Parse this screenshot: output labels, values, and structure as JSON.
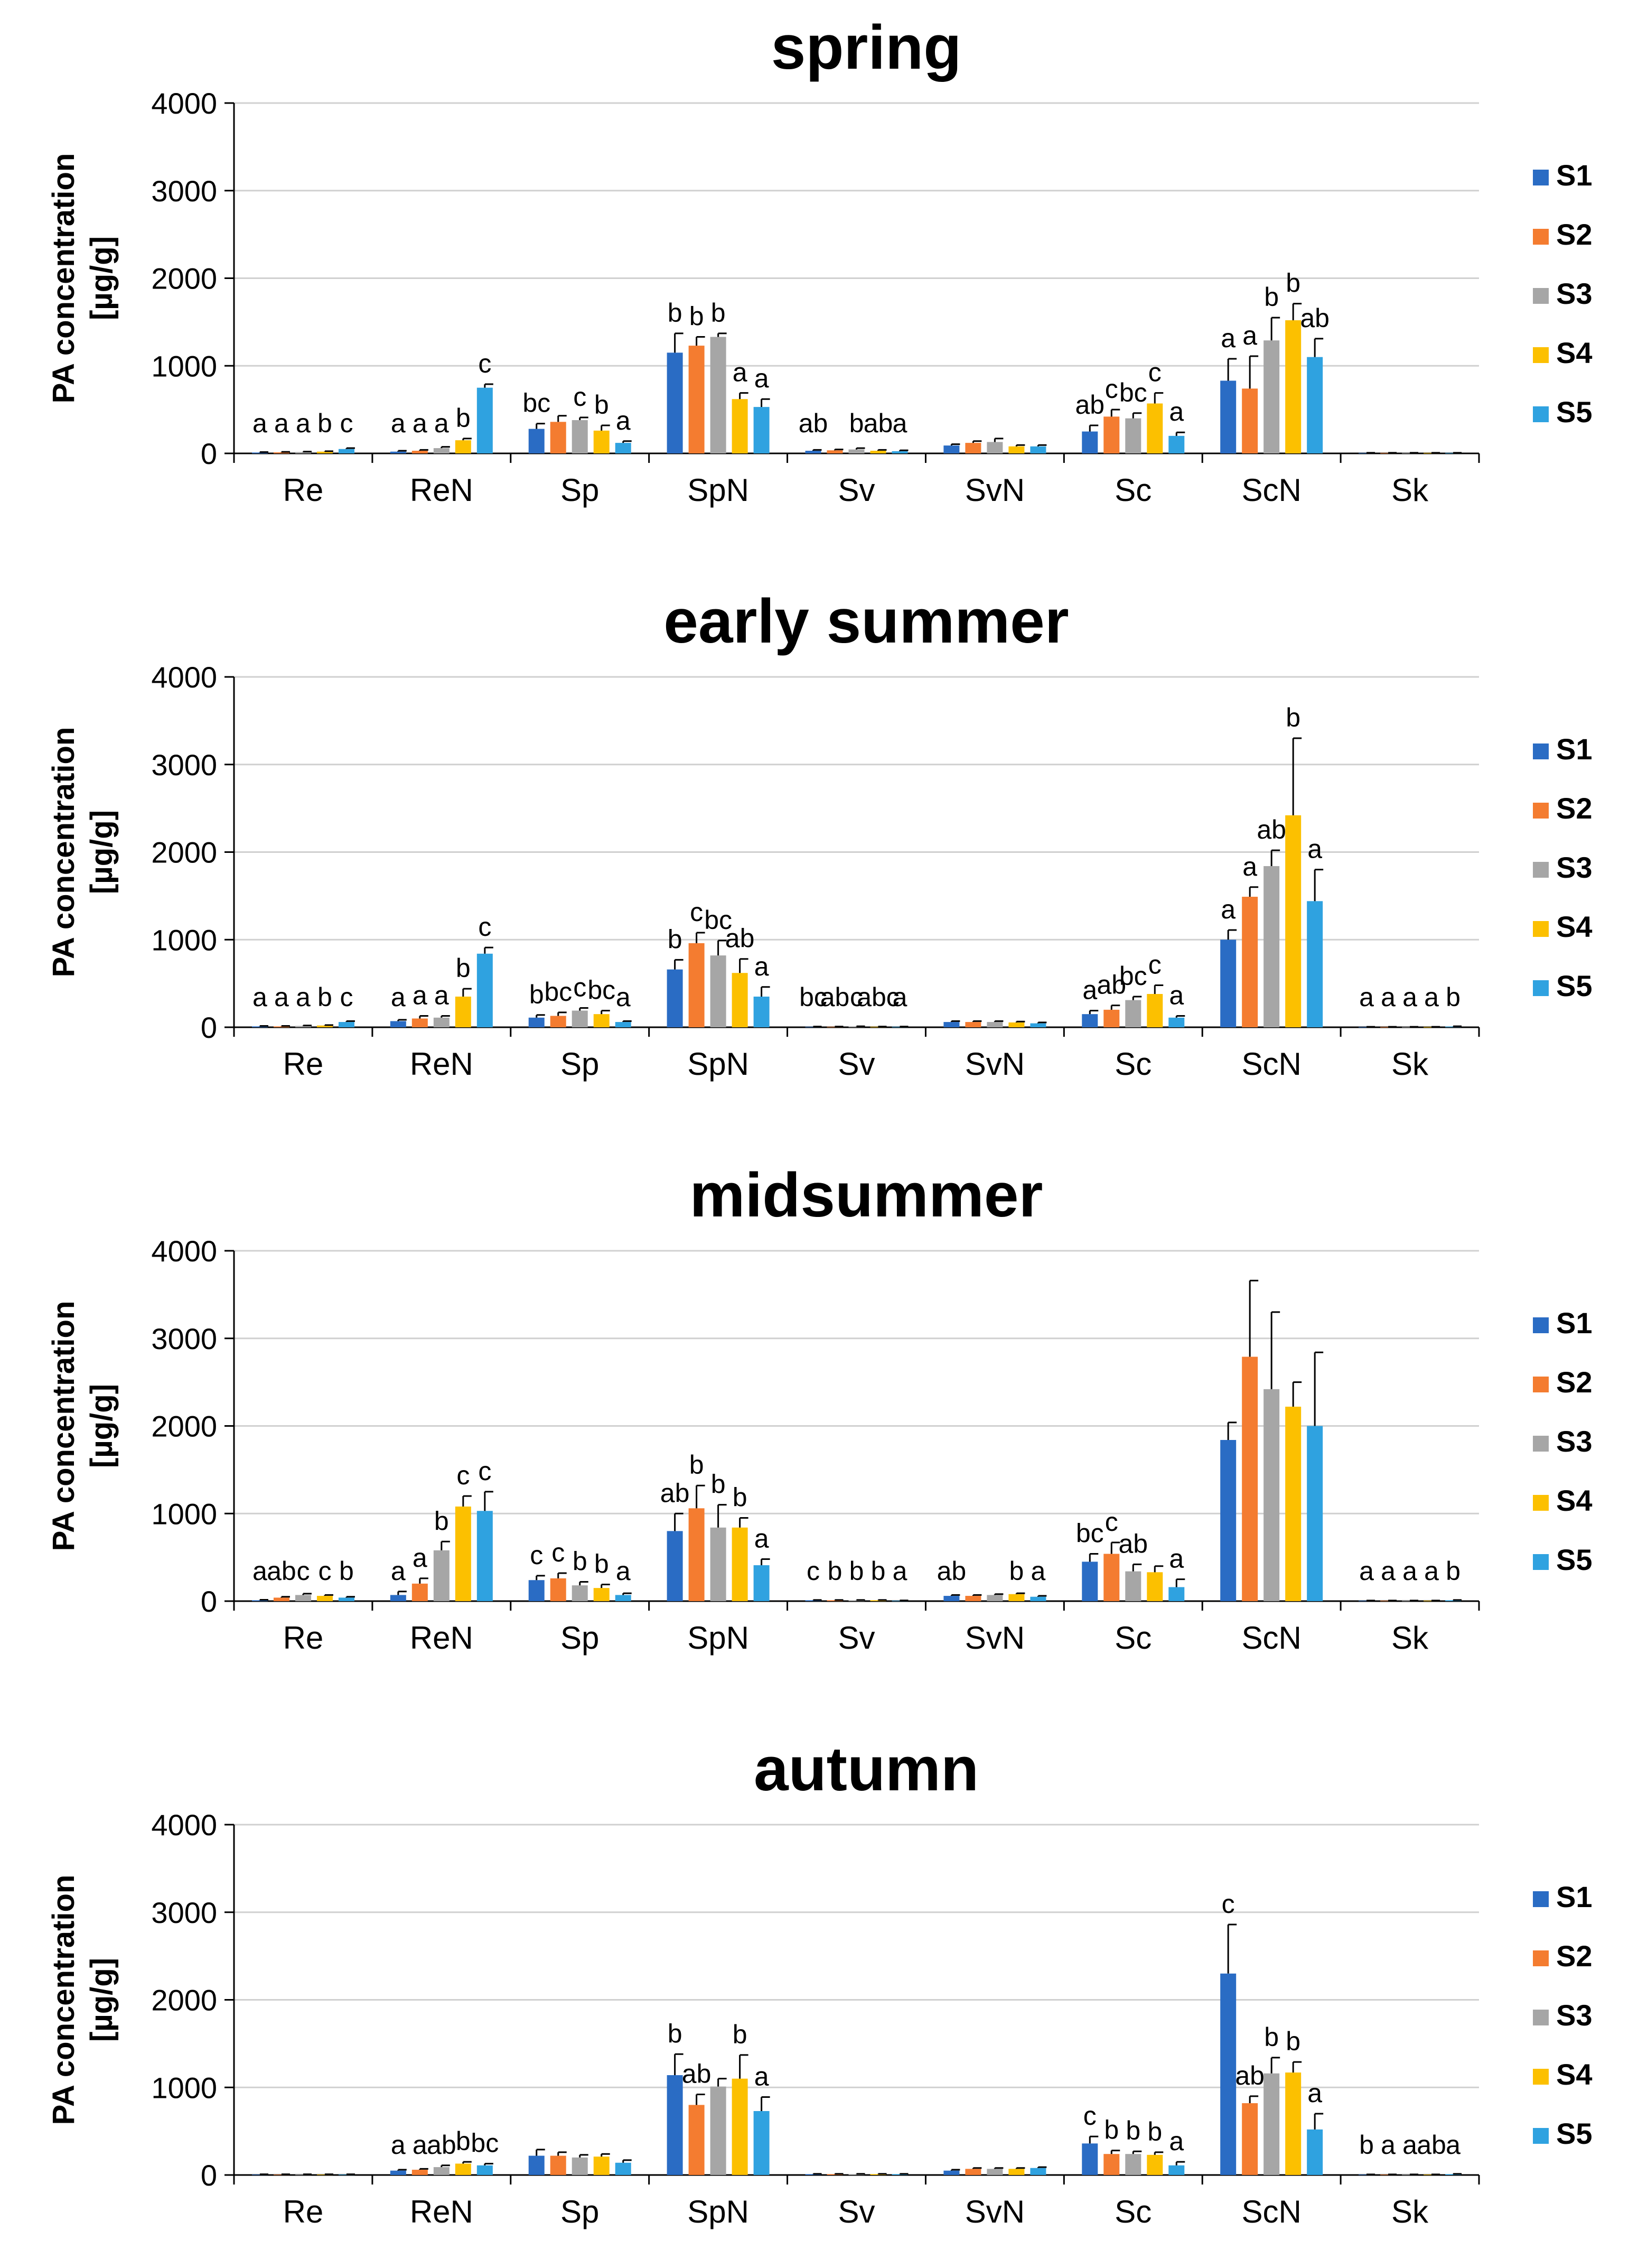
{
  "series_colors": {
    "S1": "#2a6cc4",
    "S2": "#f47c30",
    "S3": "#a6a6a6",
    "S4": "#fcc000",
    "S5": "#2fa2e0"
  },
  "chart_data": [
    {
      "type": "bar",
      "title": "spring",
      "ylabel": [
        "PA concentration",
        "[µg/g]"
      ],
      "ylim": [
        0,
        4000
      ],
      "yticks": [
        0,
        1000,
        2000,
        3000,
        4000
      ],
      "categories": [
        "Re",
        "ReN",
        "Sp",
        "SpN",
        "Sv",
        "SvN",
        "Sc",
        "ScN",
        "Sk"
      ],
      "legend": "right",
      "grid": true,
      "series": [
        {
          "name": "S1",
          "values": [
            10,
            20,
            280,
            1150,
            30,
            90,
            250,
            830,
            5
          ],
          "errors": [
            5,
            10,
            60,
            220,
            10,
            15,
            70,
            250,
            2
          ]
        },
        {
          "name": "S2",
          "values": [
            12,
            30,
            360,
            1230,
            35,
            120,
            420,
            740,
            5
          ],
          "errors": [
            5,
            10,
            70,
            100,
            10,
            20,
            80,
            370,
            2
          ]
        },
        {
          "name": "S3",
          "values": [
            15,
            60,
            380,
            1330,
            45,
            130,
            400,
            1290,
            5
          ],
          "errors": [
            5,
            15,
            30,
            40,
            15,
            40,
            60,
            260,
            2
          ]
        },
        {
          "name": "S4",
          "values": [
            20,
            150,
            260,
            620,
            30,
            80,
            570,
            1520,
            5
          ],
          "errors": [
            5,
            20,
            60,
            70,
            10,
            15,
            120,
            190,
            2
          ]
        },
        {
          "name": "S5",
          "values": [
            50,
            750,
            120,
            530,
            25,
            80,
            200,
            1100,
            5
          ],
          "errors": [
            10,
            40,
            20,
            90,
            10,
            15,
            40,
            210,
            2
          ]
        }
      ],
      "significance": [
        {
          "category": "Re",
          "labels": [
            "a",
            "a",
            "a",
            "b",
            "c"
          ]
        },
        {
          "category": "ReN",
          "labels": [
            "a",
            "a",
            "a",
            "b",
            "c"
          ]
        },
        {
          "category": "Sp",
          "labels": [
            "bc",
            "",
            "c",
            "b",
            "a"
          ]
        },
        {
          "category": "SpN",
          "labels": [
            "b",
            "b",
            "b",
            "a",
            "a"
          ]
        },
        {
          "category": "Sv",
          "labels": [
            "ab",
            "",
            "b",
            "ab",
            "a"
          ]
        },
        {
          "category": "Sc",
          "labels": [
            "ab",
            "c",
            "bc",
            "c",
            "a"
          ]
        },
        {
          "category": "ScN",
          "labels": [
            "a",
            "a",
            "b",
            "b",
            "ab"
          ]
        }
      ]
    },
    {
      "type": "bar",
      "title": "early summer",
      "ylabel": [
        "PA concentration",
        "[µg/g]"
      ],
      "ylim": [
        0,
        4000
      ],
      "yticks": [
        0,
        1000,
        2000,
        3000,
        4000
      ],
      "categories": [
        "Re",
        "ReN",
        "Sp",
        "SpN",
        "Sv",
        "SvN",
        "Sc",
        "ScN",
        "Sk"
      ],
      "legend": "right",
      "grid": true,
      "series": [
        {
          "name": "S1",
          "values": [
            10,
            70,
            110,
            660,
            5,
            60,
            150,
            1000,
            3
          ],
          "errors": [
            5,
            15,
            30,
            110,
            3,
            10,
            40,
            110,
            2
          ]
        },
        {
          "name": "S2",
          "values": [
            10,
            100,
            130,
            960,
            5,
            60,
            200,
            1490,
            3
          ],
          "errors": [
            5,
            30,
            40,
            120,
            3,
            10,
            50,
            110,
            2
          ]
        },
        {
          "name": "S3",
          "values": [
            15,
            110,
            190,
            820,
            8,
            60,
            310,
            1840,
            3
          ],
          "errors": [
            5,
            20,
            30,
            170,
            3,
            10,
            40,
            180,
            2
          ]
        },
        {
          "name": "S4",
          "values": [
            20,
            350,
            150,
            620,
            5,
            55,
            380,
            2420,
            3
          ],
          "errors": [
            5,
            90,
            40,
            160,
            3,
            10,
            100,
            880,
            2
          ]
        },
        {
          "name": "S5",
          "values": [
            60,
            840,
            60,
            350,
            5,
            45,
            110,
            1440,
            8
          ],
          "errors": [
            10,
            70,
            10,
            110,
            3,
            10,
            20,
            360,
            3
          ]
        }
      ],
      "significance": [
        {
          "category": "Re",
          "labels": [
            "a",
            "a",
            "a",
            "b",
            "c"
          ]
        },
        {
          "category": "ReN",
          "labels": [
            "a",
            "a",
            "a",
            "b",
            "c"
          ]
        },
        {
          "category": "Sp",
          "labels": [
            "b",
            "bc",
            "c",
            "bc",
            "a"
          ]
        },
        {
          "category": "SpN",
          "labels": [
            "b",
            "c",
            "bc",
            "ab",
            "a"
          ]
        },
        {
          "category": "Sv",
          "labels": [
            "bc",
            "ab",
            "c",
            "abc",
            "a"
          ]
        },
        {
          "category": "Sc",
          "labels": [
            "a",
            "ab",
            "bc",
            "c",
            "a"
          ]
        },
        {
          "category": "ScN",
          "labels": [
            "a",
            "a",
            "ab",
            "b",
            "a"
          ]
        },
        {
          "category": "Sk",
          "labels": [
            "a",
            "a",
            "a",
            "a",
            "b"
          ]
        }
      ]
    },
    {
      "type": "bar",
      "title": "midsummer",
      "ylabel": [
        "PA concentration",
        "[µg/g]"
      ],
      "ylim": [
        0,
        4000
      ],
      "yticks": [
        0,
        1000,
        2000,
        3000,
        4000
      ],
      "categories": [
        "Re",
        "ReN",
        "Sp",
        "SpN",
        "Sv",
        "SvN",
        "Sc",
        "ScN",
        "Sk"
      ],
      "legend": "right",
      "grid": true,
      "series": [
        {
          "name": "S1",
          "values": [
            10,
            70,
            240,
            800,
            10,
            60,
            450,
            1840,
            5
          ],
          "errors": [
            5,
            40,
            50,
            200,
            3,
            10,
            90,
            200,
            2
          ]
        },
        {
          "name": "S2",
          "values": [
            40,
            200,
            260,
            1060,
            10,
            60,
            540,
            2790,
            5
          ],
          "errors": [
            10,
            60,
            60,
            260,
            3,
            10,
            130,
            870,
            2
          ]
        },
        {
          "name": "S3",
          "values": [
            70,
            580,
            180,
            840,
            10,
            70,
            340,
            2420,
            5
          ],
          "errors": [
            15,
            100,
            40,
            260,
            3,
            10,
            80,
            880,
            2
          ]
        },
        {
          "name": "S4",
          "values": [
            60,
            1080,
            150,
            840,
            10,
            80,
            330,
            2220,
            5
          ],
          "errors": [
            10,
            120,
            40,
            110,
            3,
            10,
            70,
            280,
            2
          ]
        },
        {
          "name": "S5",
          "values": [
            40,
            1030,
            70,
            410,
            5,
            50,
            160,
            2000,
            10
          ],
          "errors": [
            10,
            220,
            20,
            70,
            3,
            10,
            90,
            840,
            3
          ]
        }
      ],
      "significance": [
        {
          "category": "Re",
          "labels": [
            "a",
            "ab",
            "c",
            "c",
            "b"
          ]
        },
        {
          "category": "ReN",
          "labels": [
            "a",
            "a",
            "b",
            "c",
            "c"
          ]
        },
        {
          "category": "Sp",
          "labels": [
            "c",
            "c",
            "b",
            "b",
            "a"
          ]
        },
        {
          "category": "SpN",
          "labels": [
            "ab",
            "b",
            "b",
            "b",
            "a"
          ]
        },
        {
          "category": "Sv",
          "labels": [
            "c",
            "b",
            "b",
            "b",
            "a"
          ]
        },
        {
          "category": "SvN",
          "labels": [
            "ab",
            "",
            "",
            "b",
            "a"
          ]
        },
        {
          "category": "Sc",
          "labels": [
            "bc",
            "c",
            "ab",
            "",
            "a"
          ]
        },
        {
          "category": "Sk",
          "labels": [
            "a",
            "a",
            "a",
            "a",
            "b"
          ]
        }
      ]
    },
    {
      "type": "bar",
      "title": "autumn",
      "ylabel": [
        "PA concentration",
        "[µg/g]"
      ],
      "ylim": [
        0,
        4000
      ],
      "yticks": [
        0,
        1000,
        2000,
        3000,
        4000
      ],
      "categories": [
        "Re",
        "ReN",
        "Sp",
        "SpN",
        "Sv",
        "SvN",
        "Sc",
        "ScN",
        "Sk"
      ],
      "legend": "right",
      "grid": true,
      "series": [
        {
          "name": "S1",
          "values": [
            5,
            50,
            220,
            1140,
            10,
            50,
            360,
            2300,
            5
          ],
          "errors": [
            3,
            10,
            70,
            240,
            3,
            10,
            80,
            560,
            2
          ]
        },
        {
          "name": "S2",
          "values": [
            5,
            60,
            220,
            800,
            10,
            70,
            240,
            820,
            5
          ],
          "errors": [
            3,
            10,
            40,
            120,
            3,
            10,
            40,
            80,
            2
          ]
        },
        {
          "name": "S3",
          "values": [
            5,
            90,
            200,
            1010,
            10,
            70,
            240,
            1160,
            5
          ],
          "errors": [
            3,
            20,
            30,
            90,
            3,
            10,
            30,
            180,
            2
          ]
        },
        {
          "name": "S4",
          "values": [
            5,
            130,
            210,
            1100,
            10,
            70,
            230,
            1170,
            5
          ],
          "errors": [
            3,
            20,
            30,
            270,
            3,
            10,
            30,
            120,
            2
          ]
        },
        {
          "name": "S5",
          "values": [
            5,
            110,
            140,
            730,
            10,
            80,
            110,
            520,
            10
          ],
          "errors": [
            3,
            20,
            30,
            160,
            3,
            10,
            40,
            180,
            3
          ]
        }
      ],
      "significance": [
        {
          "category": "ReN",
          "labels": [
            "a",
            "a",
            "ab",
            "b",
            "bc"
          ]
        },
        {
          "category": "SpN",
          "labels": [
            "b",
            "ab",
            "",
            "b",
            "a"
          ]
        },
        {
          "category": "Sc",
          "labels": [
            "c",
            "b",
            "b",
            "b",
            "a"
          ]
        },
        {
          "category": "ScN",
          "labels": [
            "c",
            "ab",
            "b",
            "b",
            "a"
          ]
        },
        {
          "category": "Sk",
          "labels": [
            "b",
            "a",
            "a",
            "ab",
            "a"
          ]
        }
      ]
    }
  ]
}
